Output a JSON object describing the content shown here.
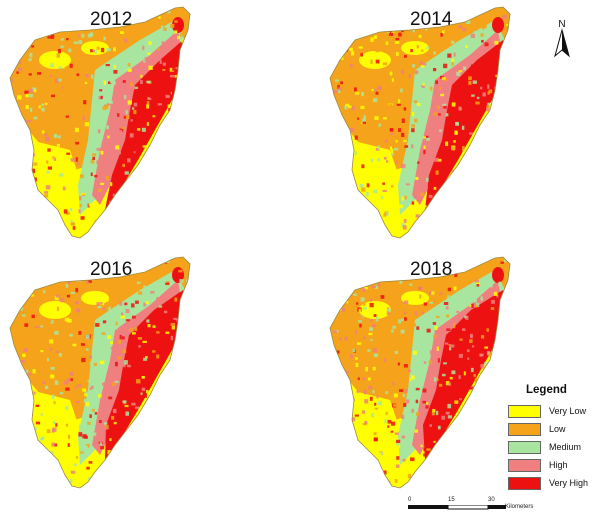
{
  "panels": [
    {
      "year": "2012"
    },
    {
      "year": "2014"
    },
    {
      "year": "2016"
    },
    {
      "year": "2018"
    }
  ],
  "north_arrow": {
    "label": "N"
  },
  "legend": {
    "title": "Legend",
    "classes": [
      {
        "label": "Very Low",
        "color": "#ffff00"
      },
      {
        "label": "Low",
        "color": "#f5a31a"
      },
      {
        "label": "Medium",
        "color": "#a8e6a0"
      },
      {
        "label": "High",
        "color": "#f08080"
      },
      {
        "label": "Very High",
        "color": "#ee1111"
      }
    ]
  },
  "scale_bar": {
    "ticks": [
      "0",
      "15",
      "30"
    ],
    "unit": "Kilometers"
  }
}
